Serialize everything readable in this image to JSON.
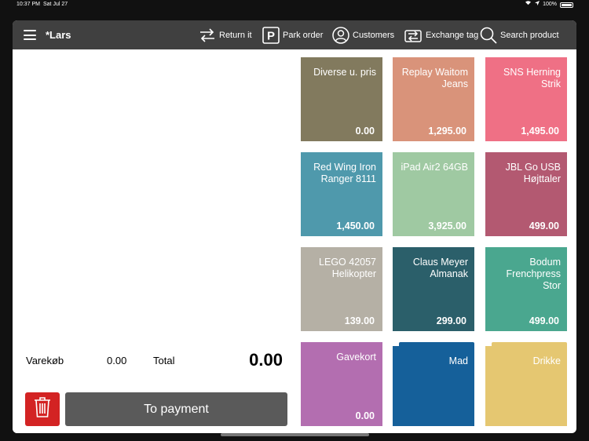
{
  "status": {
    "time": "10:37 PM",
    "date": "Sat Jul 27",
    "battery": "100%"
  },
  "header": {
    "user": "*Lars",
    "return_label": "Return it",
    "park_label": "Park order",
    "customers_label": "Customers",
    "exchange_label": "Exchange tag",
    "search_label": "Search product"
  },
  "summary": {
    "purchase_label": "Varekøb",
    "purchase_value": "0.00",
    "total_label": "Total",
    "total_value": "0.00"
  },
  "actions": {
    "payment_label": "To payment"
  },
  "tiles": [
    {
      "name": "Diverse u. pris",
      "price": "0.00",
      "color": "#827a5e"
    },
    {
      "name": "Replay Waitom Jeans",
      "price": "1,295.00",
      "color": "#d9937a"
    },
    {
      "name": "SNS Herning Strik",
      "price": "1,495.00",
      "color": "#ef7085"
    },
    {
      "name": "Red Wing Iron Ranger 8111",
      "price": "1,450.00",
      "color": "#4f99ac"
    },
    {
      "name": "iPad Air2 64GB",
      "price": "3,925.00",
      "color": "#9fc9a2"
    },
    {
      "name": "JBL Go USB Højttaler",
      "price": "499.00",
      "color": "#b35971"
    },
    {
      "name": "LEGO 42057 Helikopter",
      "price": "139.00",
      "color": "#b5b0a5"
    },
    {
      "name": "Claus Meyer Almanak",
      "price": "299.00",
      "color": "#2b5f6a"
    },
    {
      "name": "Bodum Frenchpress Stor",
      "price": "499.00",
      "color": "#4aa78f"
    },
    {
      "name": "Gavekort",
      "price": "0.00",
      "color": "#b36eb0"
    },
    {
      "name": "Mad",
      "price": "",
      "color": "#15609a"
    },
    {
      "name": "Drikke",
      "price": "",
      "color": "#e5c771"
    }
  ]
}
